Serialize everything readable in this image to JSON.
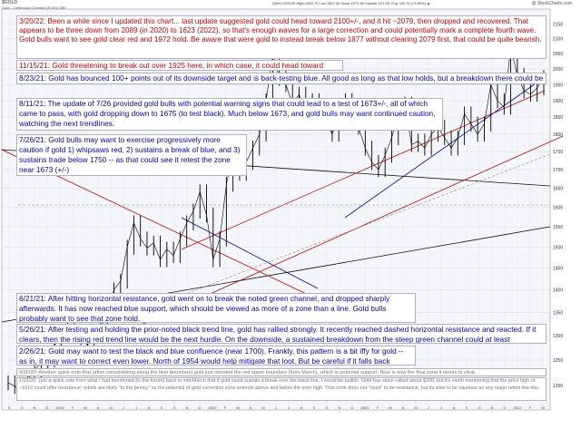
{
  "header": {
    "symbol": "$GOLD",
    "subtitle": "Gold - Continuous Contract (EOD) CME",
    "quote": "Open 1925.90  High 1983.70  Low 1922.30  Close 1972.50  Volume 221.6K  Chg +53.70 (+2.80%) ▲",
    "watermark": "@ StockCharts.com"
  },
  "annotations": [
    {
      "id": "a1",
      "color": "red",
      "text": "3/20/22: Been a while since I updated this chart... last update suggested gold could head toward 2100+/-, and it hit ~2079, then dropped and recovered. That appears to be three down from 2089 (in 2020) to 1623 (2022), so that's enough waves for a large correction and could potentially mark a complete fourth wave. Gold bulls want to see gold clear red and 1972 hold. Be aware that were gold to instead break below 1877 without clearing 2079 first, that could be quite bearish."
    },
    {
      "id": "a2",
      "color": "red",
      "text": "11/15/21: Gold threatening to break out over 1925 here, in which case, it could head toward 2100+/-"
    },
    {
      "id": "a3",
      "color": "blue",
      "text": "8/23/21: Gold has bounced 100+ points out of its downside target and is back-testing blue. All good as long as that low holds, but a breakdown there could be a big warning."
    },
    {
      "id": "a4",
      "color": "blue",
      "text": "8/11/21: The update of 7/26 provided gold bulls with potential warning signs that could lead to a test of 1673+/-, all of which came to pass, with gold dropping down to 1675 (to test black). Much below 1673, and gold bulls may want continued caution, watching the next trendlines."
    },
    {
      "id": "a5",
      "color": "blue",
      "text": "7/26/21: Gold bulls may want to exercise progressively more caution if gold 1) whipsaws red, 2) sustains a break of blue, and 3) sustains trade below 1750 -- as that could see it retest the zone near 1673 (+/-)"
    },
    {
      "id": "a6",
      "color": "blue",
      "text": "6/21/21: After hitting horizontal resistance, gold went on to break the noted green channel, and dropped sharply afterwards. It has now reached blue support, which should be viewed as more of a zone than a line. Gold bulls probably want to see that zone hold."
    },
    {
      "id": "a7",
      "color": "blue",
      "text": "5/26/21: After testing and holding the prior-noted black trend line, gold has rallied strongly. It recently reached dashed horizontal resistance and reacted. If it clears, then the rising red trend line would be the next hurdle. On the downside, a sustained breakdown from the steep green channel could at least temporarily halt the current melt-up."
    },
    {
      "id": "a8",
      "color": "blue",
      "text": "2/26/21: Gold may want to test the black and blue confluence (near 1700). Frankly, this pattern is a bit iffy for gold -- as in, it may want to correct even lower. North of 1954 would help mitigate that loot. But be careful if it falls back through the blue/black trend lines."
    },
    {
      "id": "a9",
      "color": "gray",
      "text": "9/30/20: Another quick note that (after consolidating along the blue boundary) gold just retested the red upper boundary (from March), which is potential support. Blue is now the final zone it needs to clear."
    },
    {
      "id": "a10",
      "color": "gray",
      "text": "1/23/20: Just a quick note from what I had mentioned (in the forum) back in mid-March that if gold could sustain a break over the black line, I would be bullish. Gold has since rallied about $200, but it's worth mentioning that the price high of ~1610 could offer resistance; rebels are likely \"to the penny,\" so the potential of gold correction zone extends above and below the prior high. That zone does not \"need\" to be resistance, but its wise to be cautious on any major retest like this."
    }
  ],
  "price_labels": [
    "2150",
    "2100",
    "2050",
    "2000",
    "1950",
    "1900",
    "1850",
    "1800",
    "1750",
    "1700",
    "1650",
    "1600",
    "1550",
    "1500",
    "1450",
    "1400",
    "1350",
    "1300",
    "1250",
    "1200"
  ],
  "x_labels": [
    "S",
    "O",
    "N",
    "D",
    "2019",
    "F",
    "M",
    "A",
    "M",
    "J",
    "J",
    "A",
    "S",
    "O",
    "N",
    "D",
    "2020",
    "F",
    "M",
    "A",
    "M",
    "J",
    "J",
    "A",
    "S",
    "O",
    "N",
    "D",
    "2021",
    "F",
    "M",
    "A",
    "M",
    "J",
    "J",
    "A",
    "S",
    "O",
    "N",
    "D",
    "2022",
    "F",
    "M"
  ],
  "chart_data": {
    "type": "line",
    "title": "",
    "ylim": [
      1160,
      2190
    ],
    "y_axis_scale": "log",
    "grid": true,
    "series": [
      {
        "values": [
          1205,
          1198,
          1190,
          1212,
          1230,
          1245,
          1250,
          1280,
          1300,
          1318,
          1310,
          1296,
          1280,
          1302,
          1320,
          1345,
          1400,
          1420,
          1500,
          1560,
          1520,
          1498,
          1510,
          1470,
          1495,
          1480,
          1520,
          1560,
          1590,
          1640,
          1580,
          1470,
          1520,
          1660,
          1750,
          1690,
          1720,
          1760,
          1800,
          1900,
          2050,
          1970,
          1950,
          1890,
          1920,
          1860,
          1900,
          1880,
          1840,
          1800,
          1850,
          1900,
          1880,
          1820,
          1760,
          1720,
          1700,
          1740,
          1790,
          1860,
          1890,
          1770,
          1780,
          1760,
          1800,
          1820,
          1790,
          1760,
          1790,
          1860,
          1830,
          1800,
          1830,
          1950,
          1900,
          1880,
          2070,
          1980,
          1930,
          1920,
          1940,
          1972
        ]
      }
    ]
  }
}
